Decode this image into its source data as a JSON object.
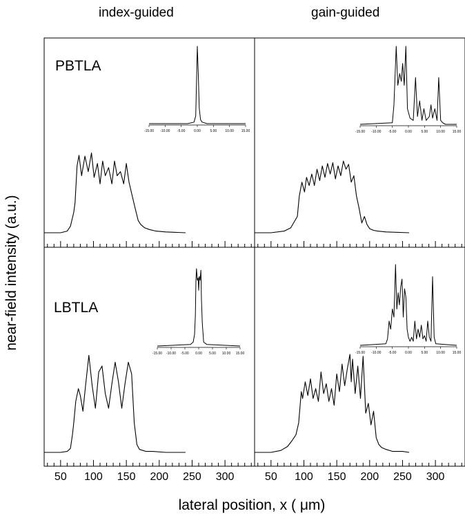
{
  "column_titles": {
    "left": "index-guided",
    "right": "gain-guided"
  },
  "row_labels": {
    "top": "PBTLA",
    "bottom": "LBTLA"
  },
  "ylabel": "near-field intensity (a.u.)",
  "xlabel": "lateral position, x ( μm)",
  "chart_data": {
    "type": "line",
    "xlabel": "lateral position, x ( μm)",
    "ylabel": "near-field intensity (a.u.)",
    "x_ticks": [
      50,
      100,
      150,
      200,
      250,
      300
    ],
    "xlim": [
      25,
      345
    ],
    "grid": false,
    "panels": [
      {
        "column": "index-guided",
        "row": "PBTLA",
        "series": [
          {
            "x": [
              25,
              50,
              60,
              65,
              70,
              72,
              75,
              78,
              82,
              87,
              92,
              97,
              101,
              106,
              110,
              114,
              118,
              123,
              128,
              132,
              136,
              141,
              146,
              150,
              154,
              159,
              164,
              168,
              172,
              178,
              185,
              195,
              210,
              240
            ],
            "y": [
              0,
              0,
              0.02,
              0.08,
              0.25,
              0.37,
              0.82,
              0.95,
              0.7,
              0.94,
              0.75,
              0.98,
              0.68,
              0.85,
              0.6,
              0.88,
              0.7,
              0.8,
              0.6,
              0.88,
              0.7,
              0.75,
              0.6,
              0.85,
              0.62,
              0.45,
              0.28,
              0.15,
              0.1,
              0.06,
              0.04,
              0.02,
              0.01,
              0
            ]
          }
        ],
        "inset": {
          "xlim": [
            -15,
            15
          ],
          "x_ticks": [
            "-15.00",
            "-10.00",
            "-5.00",
            "0.00",
            "5.00",
            "10.00",
            "15.00"
          ],
          "x": [
            -15,
            -3,
            -1,
            -0.5,
            -0.3,
            0,
            0.3,
            0.6,
            1,
            1.5,
            3,
            15
          ],
          "y": [
            0,
            0,
            0.02,
            0.1,
            0.45,
            1,
            0.65,
            0.2,
            0.05,
            0.02,
            0,
            0
          ]
        }
      },
      {
        "column": "gain-guided",
        "row": "PBTLA",
        "series": [
          {
            "x": [
              25,
              50,
              70,
              80,
              90,
              93,
              97,
              101,
              104,
              108,
              112,
              116,
              120,
              124,
              128,
              132,
              136,
              140,
              144,
              148,
              152,
              156,
              160,
              164,
              168,
              172,
              176,
              180,
              184,
              188,
              192,
              196,
              200,
              206,
              212,
              225,
              260
            ],
            "y": [
              0,
              0,
              0.02,
              0.06,
              0.2,
              0.45,
              0.62,
              0.5,
              0.68,
              0.58,
              0.72,
              0.58,
              0.78,
              0.64,
              0.82,
              0.68,
              0.85,
              0.72,
              0.86,
              0.66,
              0.82,
              0.7,
              0.88,
              0.78,
              0.84,
              0.62,
              0.7,
              0.45,
              0.3,
              0.12,
              0.2,
              0.1,
              0.05,
              0.03,
              0.02,
              0.01,
              0
            ]
          }
        ],
        "inset": {
          "xlim": [
            -15,
            15
          ],
          "x_ticks": [
            "-15.00",
            "-10.00",
            "-5.00",
            "0.00",
            "5.00",
            "10.00",
            "15.00"
          ],
          "x": [
            -15,
            -5,
            -4.5,
            -3.8,
            -3.3,
            -2.7,
            -2.2,
            -1.8,
            -1.3,
            -0.8,
            -0.3,
            0.5,
            1.5,
            2.2,
            2.8,
            3.5,
            4.2,
            4.8,
            5.5,
            6.5,
            7,
            7.5,
            8.2,
            8.9,
            9.4,
            10,
            10.6,
            11.5,
            15
          ],
          "y": [
            0,
            0.02,
            0.25,
            1,
            0.5,
            0.65,
            0.55,
            0.78,
            0.5,
            1,
            0.2,
            0.08,
            0.05,
            0.6,
            0.1,
            0.3,
            0.05,
            0.2,
            0.05,
            0.1,
            0.25,
            0.08,
            0.2,
            0.05,
            0.6,
            0.05,
            0.02,
            0,
            0
          ]
        }
      },
      {
        "column": "index-guided",
        "row": "LBTLA",
        "series": [
          {
            "x": [
              25,
              50,
              60,
              65,
              68,
              70,
              73,
              77,
              80,
              84,
              88,
              93,
              98,
              103,
              108,
              113,
              118,
              123,
              128,
              133,
              138,
              143,
              148,
              153,
              158,
              162,
              166,
              170,
              175,
              180,
              190,
              210,
              240
            ],
            "y": [
              0,
              0,
              0.01,
              0.04,
              0.18,
              0.3,
              0.52,
              0.65,
              0.58,
              0.42,
              0.68,
              0.99,
              0.68,
              0.45,
              0.82,
              0.88,
              0.6,
              0.45,
              0.7,
              0.92,
              0.72,
              0.45,
              0.7,
              0.92,
              0.8,
              0.3,
              0.08,
              0.03,
              0.02,
              0.01,
              0.01,
              0,
              0
            ]
          }
        ],
        "inset": {
          "xlim": [
            -15,
            15
          ],
          "x_ticks": [
            "-15.00",
            "-10.00",
            "-5.00",
            "0.00",
            "5.00",
            "10.00",
            "15.00"
          ],
          "x": [
            -15,
            -3,
            -2,
            -1.5,
            -1.2,
            -1,
            -0.8,
            -0.5,
            -0.2,
            0,
            0.2,
            0.5,
            0.8,
            1,
            1.3,
            1.8,
            3,
            15
          ],
          "y": [
            0,
            0.02,
            0.05,
            0.15,
            0.4,
            0.85,
            1,
            0.85,
            0.88,
            0.72,
            0.9,
            0.85,
            0.98,
            0.6,
            0.3,
            0.05,
            0.02,
            0
          ]
        }
      },
      {
        "column": "gain-guided",
        "row": "LBTLA",
        "series": [
          {
            "x": [
              25,
              50,
              65,
              75,
              82,
              88,
              92,
              96,
              98,
              102,
              106,
              110,
              114,
              118,
              122,
              126,
              130,
              134,
              138,
              142,
              146,
              150,
              154,
              158,
              162,
              166,
              170,
              172,
              174,
              178,
              182,
              186,
              190,
              194,
              198,
              202,
              206,
              210,
              214,
              218,
              225,
              235,
              250,
              260
            ],
            "y": [
              0,
              0,
              0.02,
              0.06,
              0.12,
              0.18,
              0.3,
              0.62,
              0.55,
              0.72,
              0.58,
              0.75,
              0.55,
              0.65,
              0.52,
              0.82,
              0.6,
              0.7,
              0.52,
              0.65,
              0.48,
              0.8,
              0.62,
              0.9,
              0.68,
              0.85,
              1,
              0.72,
              0.95,
              0.6,
              0.88,
              0.55,
              0.98,
              0.4,
              0.5,
              0.28,
              0.42,
              0.15,
              0.08,
              0.05,
              0.03,
              0.01,
              0.01,
              0
            ]
          }
        ],
        "inset": {
          "xlim": [
            -15,
            15
          ],
          "x_ticks": [
            "-15.00",
            "-10.00",
            "-5.00",
            "0.00",
            "5.00",
            "10.00",
            "15.00"
          ],
          "x": [
            -15,
            -7,
            -6.5,
            -6,
            -5.5,
            -5,
            -4.5,
            -4,
            -3.6,
            -3.2,
            -2.8,
            -2.4,
            -2,
            -1.6,
            -1.2,
            -0.8,
            -0.4,
            0,
            0.5,
            1,
            1.5,
            2,
            2.5,
            3,
            3.5,
            4,
            4.5,
            5,
            5.5,
            6,
            6.5,
            7,
            7.5,
            8,
            8.5,
            15
          ],
          "y": [
            0,
            0.02,
            0.08,
            0.3,
            0.2,
            0.45,
            0.35,
            1,
            0.45,
            0.65,
            0.5,
            0.72,
            0.82,
            0.35,
            0.7,
            0.6,
            0.2,
            0.1,
            0.05,
            0.1,
            0.05,
            0.3,
            0.08,
            0.2,
            0.1,
            0.25,
            0.08,
            0.12,
            0.05,
            0.3,
            0.1,
            0.05,
            0.85,
            0.1,
            0.02,
            0
          ]
        }
      }
    ]
  }
}
